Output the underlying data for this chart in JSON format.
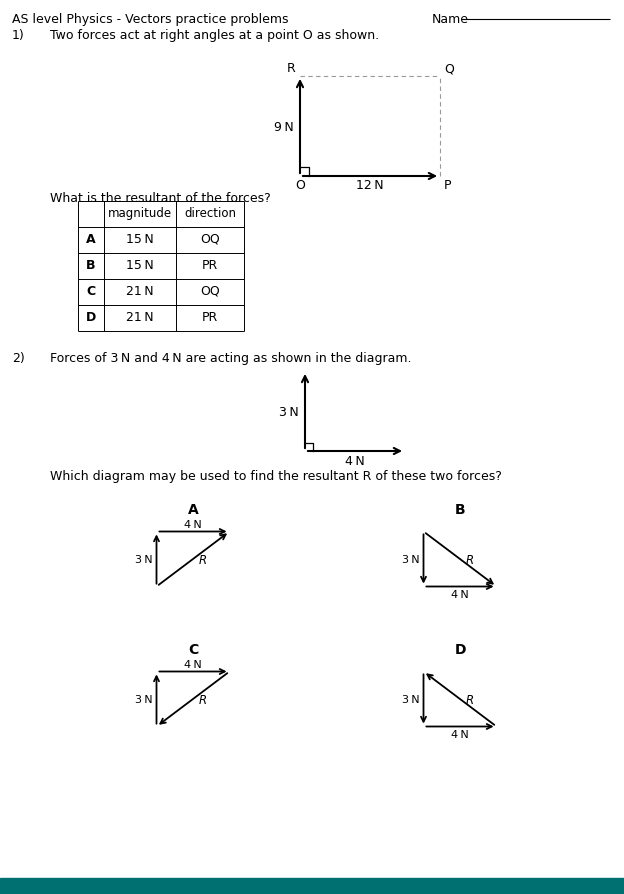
{
  "title": "AS level Physics - Vectors practice problems",
  "name_label": "Name",
  "q1_text": "Two forces act at right angles at a point O as shown.",
  "q1_sub": "What is the resultant of the forces?",
  "q2_text": "Forces of 3 N and 4 N are acting as shown in the diagram.",
  "q2_sub": "Which diagram may be used to find the resultant R of these two forces?",
  "table_headers": [
    "",
    "magnitude",
    "direction"
  ],
  "table_rows": [
    [
      "A",
      "15 N",
      "OQ"
    ],
    [
      "B",
      "15 N",
      "PR"
    ],
    [
      "C",
      "21 N",
      "OQ"
    ],
    [
      "D",
      "21 N",
      "PR"
    ]
  ],
  "bg_color": "#ffffff",
  "teal_color": "#007070"
}
